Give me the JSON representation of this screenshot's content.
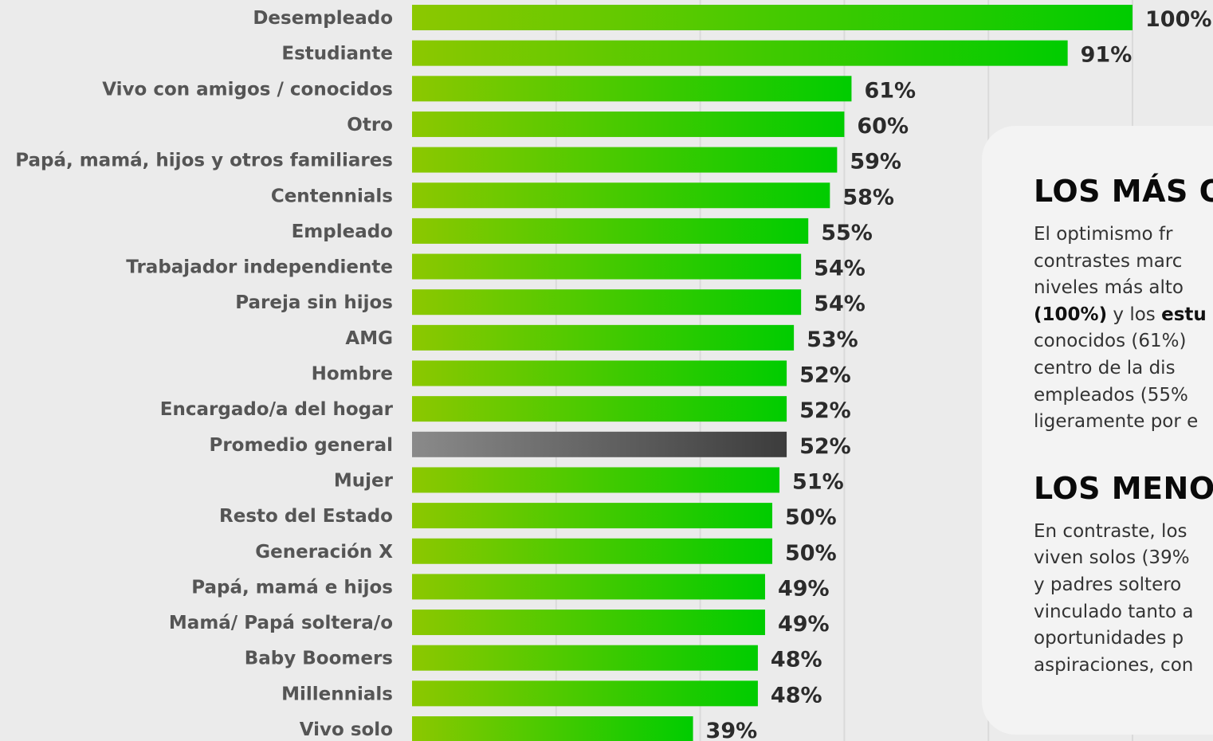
{
  "chart_data": {
    "type": "bar",
    "orientation": "horizontal",
    "categories": [
      "Desempleado",
      "Estudiante",
      "Vivo con amigos / conocidos",
      "Otro",
      "Papá, mamá, hijos y otros familiares",
      "Centennials",
      "Empleado",
      "Trabajador independiente",
      "Pareja sin hijos",
      "AMG",
      "Hombre",
      "Encargado/a del hogar",
      "Promedio general",
      "Mujer",
      "Resto del Estado",
      "Generación X",
      "Papá, mamá e hijos",
      "Mamá/ Papá soltera/o",
      "Baby Boomers",
      "Millennials",
      "Vivo solo"
    ],
    "values": [
      100,
      91,
      61,
      60,
      59,
      58,
      55,
      54,
      54,
      53,
      52,
      52,
      52,
      51,
      50,
      50,
      49,
      49,
      48,
      48,
      39
    ],
    "value_labels": [
      "100%",
      "91%",
      "61%",
      "60%",
      "59%",
      "58%",
      "55%",
      "54%",
      "54%",
      "53%",
      "52%",
      "52%",
      "52%",
      "51%",
      "50%",
      "50%",
      "49%",
      "49%",
      "48%",
      "48%",
      "39%"
    ],
    "highlight_category": "Promedio general",
    "xlim": [
      0,
      100
    ],
    "grid": true,
    "colors": {
      "bar_start": "#8cc800",
      "bar_end": "#00cc00",
      "highlight_start": "#8a8a8a",
      "highlight_end": "#3c3c3c"
    }
  },
  "info_card": {
    "sections": [
      {
        "heading": "LOS MÁS O",
        "lines": [
          [
            {
              "t": "El optimismo fr"
            }
          ],
          [
            {
              "t": "contrastes marc"
            }
          ],
          [
            {
              "t": "niveles más alto"
            }
          ],
          [
            {
              "t": "(100%)",
              "b": true
            },
            {
              "t": " y los "
            },
            {
              "t": "estu",
              "b": true
            }
          ],
          [
            {
              "t": "conocidos (61%)"
            }
          ],
          [
            {
              "t": "centro de la dis"
            }
          ],
          [
            {
              "t": "empleados (55%"
            }
          ],
          [
            {
              "t": "ligeramente por e"
            }
          ]
        ]
      },
      {
        "heading": "LOS MENO",
        "lines": [
          [
            {
              "t": "En contraste, los"
            }
          ],
          [
            {
              "t": "viven solos (39%"
            }
          ],
          [
            {
              "t": "y padres soltero"
            }
          ],
          [
            {
              "t": "vinculado tanto a"
            }
          ],
          [
            {
              "t": "oportunidades p"
            }
          ],
          [
            {
              "t": "aspiraciones, con"
            }
          ]
        ]
      }
    ]
  }
}
